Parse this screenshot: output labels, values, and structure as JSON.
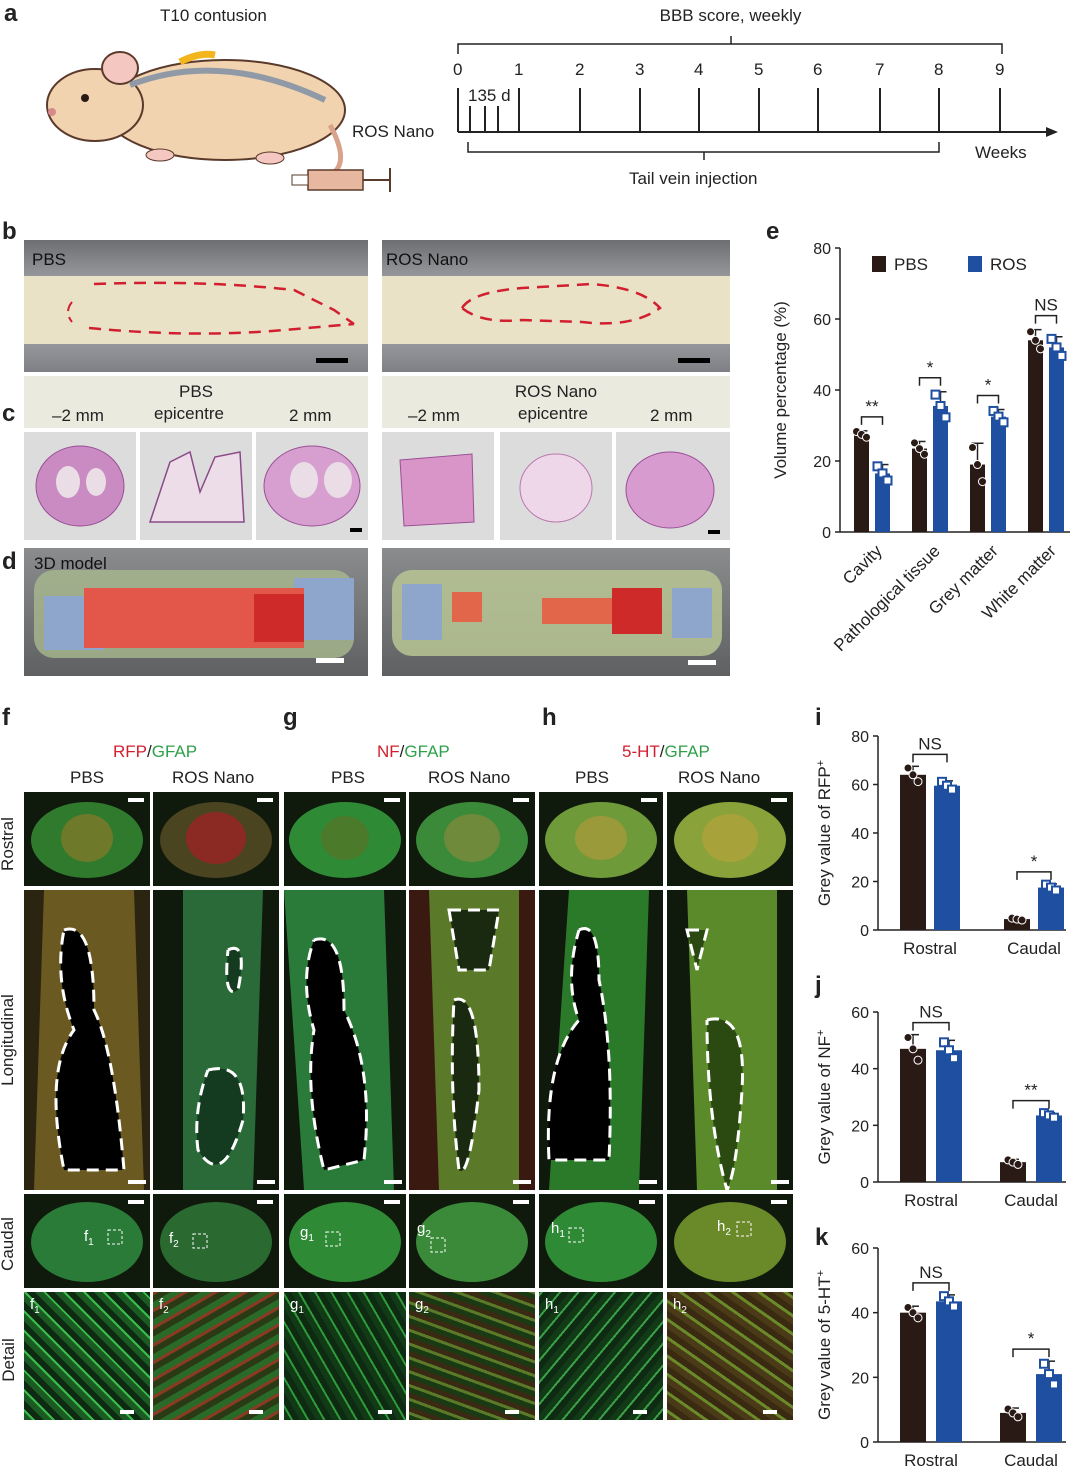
{
  "panel_letters": {
    "a": "a",
    "b": "b",
    "c": "c",
    "d": "d",
    "e": "e",
    "f": "f",
    "g": "g",
    "h": "h",
    "i": "i",
    "j": "j",
    "k": "k"
  },
  "panel_a": {
    "title": "T10 contusion",
    "bbb": "BBB score, weekly",
    "ros_nano": "ROS Nano",
    "weeks_axis": [
      "0",
      "1",
      "2",
      "3",
      "4",
      "5",
      "6",
      "7",
      "8",
      "9"
    ],
    "days": "135 d",
    "weeks_label": "Weeks",
    "tail": "Tail vein injection"
  },
  "panel_b": {
    "pbs": "PBS",
    "ros": "ROS Nano"
  },
  "panel_c": {
    "pbs_group": "PBS",
    "ros_group": "ROS Nano",
    "minus": "–2 mm",
    "epi": "epicentre",
    "plus": "2 mm"
  },
  "panel_d": {
    "label": "3D model"
  },
  "panel_fgh": {
    "f_stain_red": "RFP",
    "g_stain_red": "NF",
    "h_stain_red": "5-HT",
    "sep": "/",
    "stain_green": "GFAP",
    "pbs": "PBS",
    "ros": "ROS Nano",
    "rows": [
      "Rostral",
      "Longitudinal",
      "Caudal",
      "Detail"
    ],
    "roi": {
      "f1": "f",
      "f1s": "1",
      "f2": "f",
      "f2s": "2",
      "g1": "g",
      "g1s": "1",
      "g2": "g",
      "g2s": "2",
      "h1": "h",
      "h1s": "1",
      "h2": "h",
      "h2s": "2"
    }
  },
  "colors": {
    "pbs_bar": "#2a1a16",
    "ros_bar": "#1f4fa0",
    "red_mark": "#d21f2f",
    "green_stain": "#3bb34a",
    "red_stain": "#c92a3a"
  },
  "chart_data": [
    {
      "id": "e",
      "type": "bar",
      "categories": [
        "Cavity",
        "Pathological tissue",
        "Grey matter",
        "White matter"
      ],
      "series": [
        {
          "name": "PBS",
          "values": [
            27.5,
            23.5,
            19,
            54
          ]
        },
        {
          "name": "ROS",
          "values": [
            16.5,
            35.5,
            32.5,
            52
          ]
        }
      ],
      "errors": [
        {
          "values": [
            1,
            2,
            6,
            3
          ]
        },
        {
          "values": [
            2.5,
            4,
            2,
            3
          ]
        }
      ],
      "significance": [
        "**",
        "*",
        "*",
        "NS"
      ],
      "ylabel": "Volume percentage (%)",
      "ylim": [
        0,
        80
      ],
      "yticks": [
        0,
        20,
        40,
        60,
        80
      ],
      "legend": "top-right"
    },
    {
      "id": "i",
      "type": "bar",
      "categories": [
        "Rostral",
        "Caudal"
      ],
      "series": [
        {
          "name": "PBS",
          "values": [
            64,
            4.5
          ]
        },
        {
          "name": "ROS",
          "values": [
            59.5,
            17.5
          ]
        }
      ],
      "errors": [
        {
          "values": [
            3.5,
            0.5
          ]
        },
        {
          "values": [
            2,
            1.5
          ]
        }
      ],
      "significance": [
        "NS",
        "*"
      ],
      "ylabel": "Grey value of RFP",
      "ylabel_sup": "+",
      "ylim": [
        0,
        80
      ],
      "yticks": [
        0,
        20,
        40,
        60,
        80
      ]
    },
    {
      "id": "j",
      "type": "bar",
      "categories": [
        "Rostral",
        "Caudal"
      ],
      "series": [
        {
          "name": "PBS",
          "values": [
            47,
            7
          ]
        },
        {
          "name": "ROS",
          "values": [
            46.5,
            23.5
          ]
        }
      ],
      "errors": [
        {
          "values": [
            5,
            1
          ]
        },
        {
          "values": [
            3.5,
            1
          ]
        }
      ],
      "significance": [
        "NS",
        "**"
      ],
      "ylabel": "Grey value of NF",
      "ylabel_sup": "+",
      "ylim": [
        0,
        60
      ],
      "yticks": [
        0,
        20,
        40,
        60
      ]
    },
    {
      "id": "k",
      "type": "bar",
      "categories": [
        "Rostral",
        "Caudal"
      ],
      "series": [
        {
          "name": "PBS",
          "values": [
            40,
            9
          ]
        },
        {
          "name": "ROS",
          "values": [
            43.5,
            21
          ]
        }
      ],
      "errors": [
        {
          "values": [
            2,
            1.5
          ]
        },
        {
          "values": [
            2,
            4
          ]
        }
      ],
      "significance": [
        "NS",
        "*"
      ],
      "ylabel": "Grey value of 5-HT",
      "ylabel_sup": "+",
      "ylim": [
        0,
        60
      ],
      "yticks": [
        0,
        20,
        40,
        60
      ]
    }
  ]
}
